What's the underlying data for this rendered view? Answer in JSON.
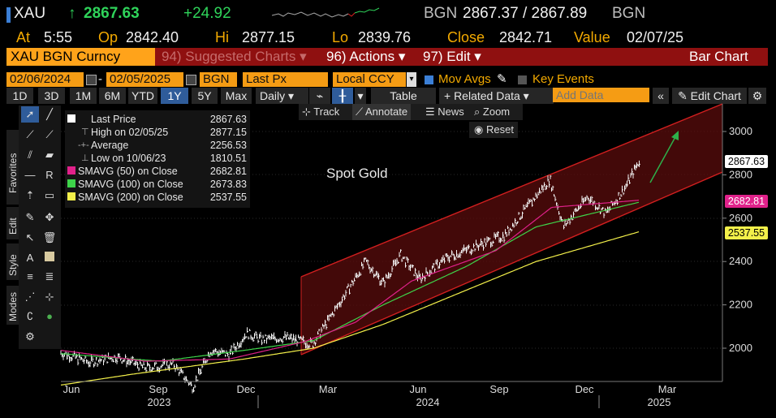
{
  "header": {
    "ticker": "XAU",
    "arrow": "↑",
    "last": "2867.63",
    "change": "+24.92",
    "source_left": "BGN",
    "bid_ask": "2867.37 / 2867.89",
    "source_right": "BGN",
    "at_label": "At",
    "time": "5:55",
    "op_label": "Op",
    "open": "2842.40",
    "hi_label": "Hi",
    "high": "2877.15",
    "lo_label": "Lo",
    "low": "2839.76",
    "close_label": "Close",
    "close": "2842.71",
    "value_label": "Value",
    "value_date": "02/07/25"
  },
  "menu": {
    "security": "XAU BGN Curncy",
    "suggested": "94) Suggested Charts ▾",
    "actions": "96) Actions ▾",
    "edit": "97) Edit ▾",
    "chart_type": "Bar Chart"
  },
  "settings": {
    "start_date": "02/06/2024",
    "dash": "-",
    "end_date": "02/05/2025",
    "pricing_source": "BGN",
    "field": "Last Px",
    "currency": "Local CCY",
    "mov_avgs": "Mov Avgs",
    "key_events": "Key Events"
  },
  "toolbar": {
    "ranges": [
      "1D",
      "3D",
      "1M",
      "6M",
      "YTD",
      "1Y",
      "5Y",
      "Max"
    ],
    "selected_range": "1Y",
    "period": "Daily ▾",
    "table": "Table",
    "related": "+ Related Data ▾",
    "add_data_placeholder": "Add Data",
    "edit_chart": "✎ Edit Chart"
  },
  "chart_tools": {
    "track": "Track",
    "annotate": "Annotate",
    "news": "News",
    "zoom": "Zoom",
    "reset": "Reset"
  },
  "side_tabs": [
    "Favorites",
    "Edit",
    "Style",
    "Modes"
  ],
  "legend": [
    {
      "label": "Last Price",
      "value": "2867.63",
      "color": "#ffffff",
      "marker": "box"
    },
    {
      "label": "High on 02/05/25",
      "value": "2877.15",
      "color": "#bbbbbb",
      "marker": "high"
    },
    {
      "label": "Average",
      "value": "2256.53",
      "color": "#bbbbbb",
      "marker": "avg"
    },
    {
      "label": "Low on 10/06/23",
      "value": "1810.51",
      "color": "#bbbbbb",
      "marker": "low"
    },
    {
      "label": "SMAVG (50)  on Close",
      "value": "2682.81",
      "color": "#e0218a",
      "marker": "box"
    },
    {
      "label": "SMAVG (100)  on Close",
      "value": "2673.83",
      "color": "#3ed44a",
      "marker": "box"
    },
    {
      "label": "SMAVG (200)  on Close",
      "value": "2537.55",
      "color": "#f3f04a",
      "marker": "box"
    }
  ],
  "annotation_text": "Spot Gold",
  "price_tags": {
    "last": "2867.63",
    "sma50": "2682.81",
    "sma200": "2537.55"
  },
  "colors": {
    "accent_amber": "#f2a900",
    "menu_red": "#8f1010",
    "up_green": "#2fd35a",
    "sma50": "#e0218a",
    "sma100": "#3ed44a",
    "sma200": "#f3f04a",
    "channel": "#d21f1f"
  },
  "chart_data": {
    "type": "line",
    "y_ticks": [
      "3000",
      "2800",
      "2600",
      "2400",
      "2200",
      "2000"
    ],
    "ylim": [
      1850,
      3100
    ],
    "x_ticks": [
      "Jun",
      "Sep",
      "Dec",
      "Mar",
      "Jun",
      "Sep",
      "Dec",
      "Mar"
    ],
    "year_labels": [
      "2023",
      "2024",
      "2025"
    ],
    "series": [
      {
        "x": [
          "2023-05-15",
          "2023-06-15",
          "2023-07-15",
          "2023-08-15",
          "2023-09-15",
          "2023-10-06",
          "2023-10-25",
          "2023-11-15",
          "2023-12-04",
          "2023-12-20",
          "2024-01-15",
          "2024-02-14",
          "2024-03-10",
          "2024-04-12",
          "2024-05-01",
          "2024-05-20",
          "2024-06-10",
          "2024-07-10",
          "2024-08-10",
          "2024-09-10",
          "2024-10-30",
          "2024-11-14",
          "2024-12-10",
          "2024-12-30",
          "2025-01-20",
          "2025-02-05"
        ],
        "values": [
          1980,
          1935,
          1960,
          1910,
          1925,
          1820,
          1990,
          1970,
          2070,
          2040,
          2050,
          2020,
          2180,
          2400,
          2300,
          2430,
          2320,
          2420,
          2470,
          2520,
          2780,
          2560,
          2700,
          2620,
          2740,
          2867
        ]
      },
      {
        "name": "SMAVG (50)",
        "x": [
          "2023-05-15",
          "2023-08-15",
          "2023-11-15",
          "2024-02-05",
          "2024-04-01",
          "2024-06-01",
          "2024-09-01",
          "2024-11-01",
          "2025-02-05"
        ],
        "values": [
          1990,
          1940,
          1950,
          2030,
          2120,
          2310,
          2450,
          2650,
          2683
        ]
      },
      {
        "name": "SMAVG (100)",
        "x": [
          "2023-05-15",
          "2023-09-01",
          "2023-12-01",
          "2024-02-15",
          "2024-05-01",
          "2024-08-01",
          "2024-10-15",
          "2025-02-05"
        ],
        "values": [
          1975,
          1940,
          1990,
          2035,
          2200,
          2380,
          2560,
          2674
        ]
      },
      {
        "name": "SMAVG (200)",
        "x": [
          "2023-05-15",
          "2023-08-01",
          "2023-12-01",
          "2024-02-15",
          "2024-05-01",
          "2024-08-01",
          "2024-10-15",
          "2025-02-05"
        ],
        "values": [
          1830,
          1880,
          1950,
          2000,
          2110,
          2270,
          2400,
          2538
        ]
      }
    ]
  }
}
